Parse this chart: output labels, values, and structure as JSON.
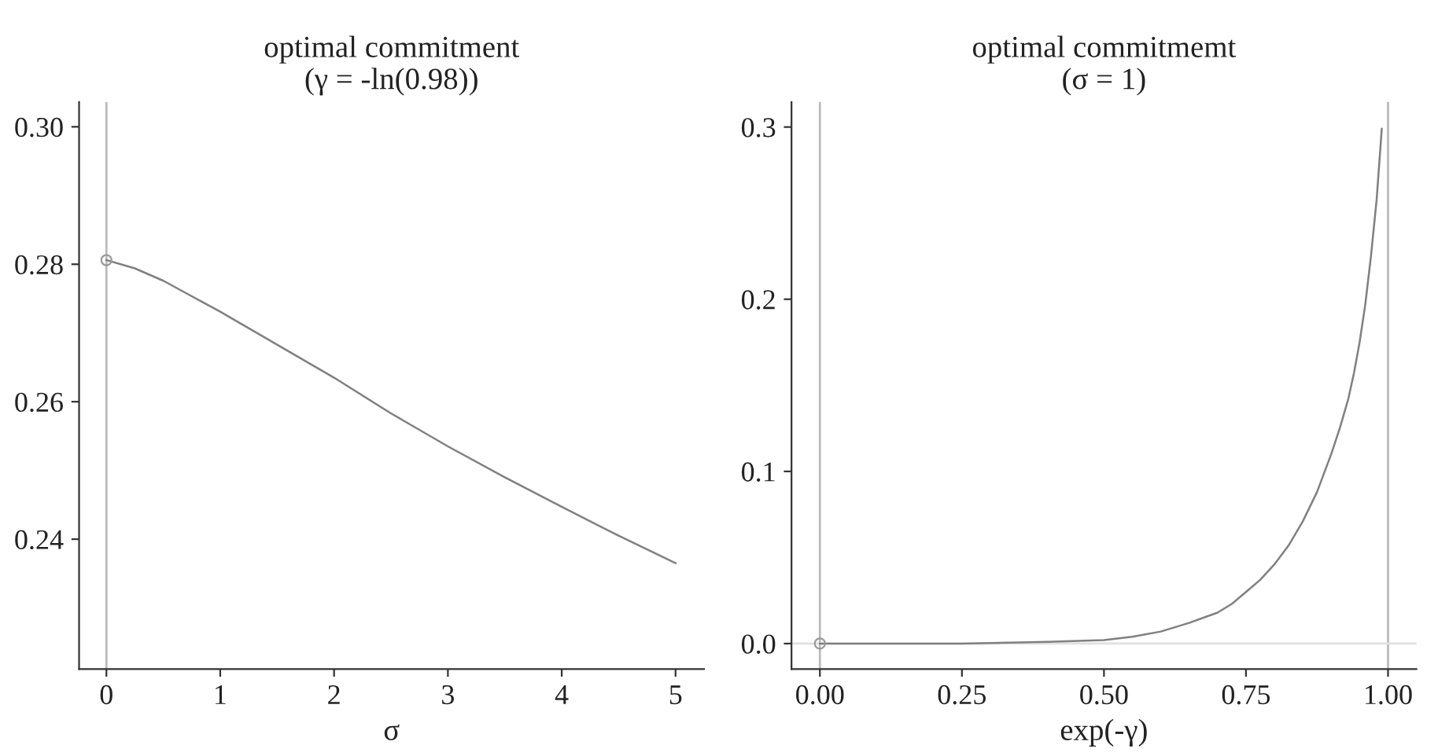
{
  "chart_data": [
    {
      "type": "line",
      "title": "optimal commitment\n(γ = -ln(0.98))",
      "xlabel": "σ",
      "xlim": [
        -0.24,
        5.25
      ],
      "xticks": [
        0,
        1,
        2,
        3,
        4,
        5
      ],
      "ylim": [
        0.2211,
        0.3036
      ],
      "yticks": [
        0.24,
        0.26,
        0.28,
        {
          "value": 0.3,
          "label": "0.30"
        }
      ],
      "grid": false,
      "legend": false,
      "series": [
        {
          "color": "#808080",
          "x": [
            0,
            0.25,
            0.5,
            1,
            1.5,
            2,
            2.5,
            3,
            3.5,
            4,
            4.5,
            5
          ],
          "values": [
            0.2806,
            0.2794,
            0.2776,
            0.2731,
            0.2683,
            0.2635,
            0.2583,
            0.2535,
            0.249,
            0.2447,
            0.2405,
            0.2365
          ]
        },
        {
          "type": "scatter",
          "marker": "circle",
          "color": "#999999",
          "x": [
            0
          ],
          "values": [
            0.2806
          ]
        }
      ],
      "ref_lines": [
        {
          "axis": "x",
          "value": 0,
          "color": "#bbbbbb"
        }
      ]
    },
    {
      "type": "line",
      "title": "optimal commitmemt\n(σ = 1)",
      "xlabel": "exp(-γ)",
      "xlim": [
        -0.05,
        1.05
      ],
      "xticks": [
        {
          "value": 0,
          "label": "0.00"
        },
        0.25,
        {
          "value": 0.5,
          "label": "0.50"
        },
        0.75,
        {
          "value": 1,
          "label": "1.00"
        }
      ],
      "ylim": [
        -0.0148,
        0.3145
      ],
      "yticks": [
        {
          "value": 0,
          "label": "0.0"
        },
        0.1,
        0.2,
        0.3
      ],
      "grid": false,
      "legend": false,
      "series": [
        {
          "color": "#808080",
          "x": [
            0,
            0.25,
            0.4,
            0.5,
            0.55,
            0.6,
            0.65,
            0.7,
            0.725,
            0.75,
            0.775,
            0.8,
            0.825,
            0.85,
            0.875,
            0.9,
            0.915,
            0.93,
            0.94,
            0.95,
            0.96,
            0.97,
            0.98,
            0.989
          ],
          "values": [
            0,
            0,
            0.001,
            0.002,
            0.004,
            0.007,
            0.012,
            0.018,
            0.023,
            0.03,
            0.037,
            0.046,
            0.057,
            0.071,
            0.088,
            0.11,
            0.125,
            0.142,
            0.157,
            0.175,
            0.197,
            0.225,
            0.258,
            0.299
          ]
        },
        {
          "type": "scatter",
          "marker": "circle",
          "color": "#999999",
          "x": [
            0
          ],
          "values": [
            0
          ]
        }
      ],
      "ref_lines": [
        {
          "axis": "x",
          "value": 0,
          "color": "#bbbbbb"
        },
        {
          "axis": "x",
          "value": 1,
          "color": "#bbbbbb"
        },
        {
          "axis": "y",
          "value": 0,
          "color": "#e0e0e0"
        }
      ]
    }
  ]
}
